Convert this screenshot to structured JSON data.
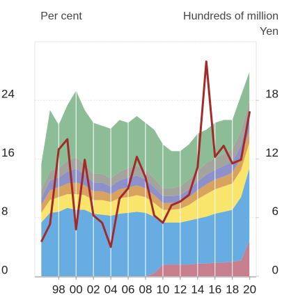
{
  "chart_data": {
    "type": "stacked_area_line",
    "ylabel": "Per cent",
    "y2label": [
      "Hundreds of million",
      "Yen"
    ],
    "x": [
      1996,
      1997,
      1998,
      1999,
      2000,
      2001,
      2002,
      2003,
      2004,
      2005,
      2006,
      2007,
      2008,
      2009,
      2010,
      2011,
      2012,
      2013,
      2014,
      2015,
      2016,
      2017,
      2018,
      2019,
      2020
    ],
    "xlim": [
      1995.25,
      2020.75
    ],
    "xticks": [
      {
        "value": 1998,
        "label": "98"
      },
      {
        "value": 2000,
        "label": "00"
      },
      {
        "value": 2002,
        "label": "02"
      },
      {
        "value": 2004,
        "label": "04"
      },
      {
        "value": 2006,
        "label": "06"
      },
      {
        "value": 2008,
        "label": "08"
      },
      {
        "value": 2010,
        "label": "10"
      },
      {
        "value": 2012,
        "label": "12"
      },
      {
        "value": 2014,
        "label": "14"
      },
      {
        "value": 2016,
        "label": "16"
      },
      {
        "value": 2018,
        "label": "18"
      },
      {
        "value": 2020,
        "label": "20"
      }
    ],
    "ylim": [
      0,
      32
    ],
    "yticks": [
      0,
      8,
      16,
      24
    ],
    "y2lim": [
      0,
      24
    ],
    "y2ticks": [
      0,
      6,
      12,
      18
    ],
    "series": [
      {
        "color": "#c77f8d",
        "axis": "y2",
        "values": [
          0,
          0,
          0,
          0,
          0,
          0,
          0,
          0,
          0,
          0,
          0,
          0,
          0,
          0.3,
          1.2,
          1.2,
          1.2,
          1.2,
          1.3,
          1.3,
          1.4,
          1.4,
          1.5,
          1.6,
          3.7
        ]
      },
      {
        "color": "#67ade2",
        "axis": "y2",
        "values": [
          5.5,
          6.5,
          6.6,
          7,
          6.8,
          6.8,
          6.4,
          6.3,
          6.2,
          6.4,
          6.5,
          6.6,
          6.5,
          5.8,
          4.3,
          4.3,
          4.3,
          4.5,
          4.6,
          4.8,
          5,
          5.2,
          5.3,
          6.5,
          7.5
        ]
      },
      {
        "color": "#f9e46c",
        "axis": "y2",
        "values": [
          1.0,
          1.3,
          1.5,
          1.4,
          1.6,
          1.5,
          1.4,
          1.5,
          1.4,
          1.6,
          1.6,
          1.7,
          1.6,
          1.4,
          1.3,
          1.3,
          1.4,
          1.6,
          2.0,
          2.3,
          2.5,
          2.6,
          2.7,
          2.8,
          2.6
        ]
      },
      {
        "color": "#d7a35e",
        "axis": "y2",
        "values": [
          0.8,
          1.0,
          1.0,
          1.1,
          1.2,
          1.0,
          0.9,
          0.9,
          0.8,
          0.9,
          1.0,
          1.0,
          0.9,
          0.8,
          0.7,
          0.7,
          0.7,
          0.8,
          0.9,
          1.0,
          1.0,
          1.0,
          1.1,
          1.2,
          1.3
        ]
      },
      {
        "color": "#8d90c9",
        "axis": "y2",
        "values": [
          0.7,
          1.0,
          1.0,
          1.2,
          1.4,
          1.1,
          0.9,
          0.9,
          0.8,
          0.9,
          1.0,
          1.0,
          0.9,
          0.8,
          0.7,
          0.7,
          0.7,
          0.8,
          0.9,
          1.0,
          1.0,
          1.1,
          1.1,
          1.3,
          1.4
        ]
      },
      {
        "color": "#a3a59c",
        "axis": "y2",
        "values": [
          0.8,
          1.0,
          1.0,
          1.1,
          1.2,
          1.0,
          0.9,
          0.9,
          0.8,
          0.9,
          1.0,
          1.0,
          1.0,
          0.9,
          0.8,
          0.8,
          0.9,
          1.0,
          1.1,
          1.2,
          1.2,
          1.2,
          1.3,
          1.5,
          1.6
        ]
      },
      {
        "color": "#8cbd96",
        "axis": "y2",
        "values": [
          2.7,
          6.2,
          4.4,
          5.7,
          6.8,
          5.6,
          5.2,
          4.9,
          5.1,
          5.3,
          4.6,
          5.1,
          4.8,
          5.0,
          4.5,
          3.8,
          3.6,
          3.6,
          3.8,
          3.4,
          3.6,
          3.5,
          3.0,
          3.6,
          2.9
        ]
      },
      {
        "color": "#a32a2a",
        "type": "line",
        "values": [
          4.7,
          7.1,
          17.3,
          18.7,
          6.4,
          15.9,
          8.3,
          7.3,
          4.0,
          10.6,
          12.0,
          16.3,
          13.5,
          8.3,
          7.3,
          9.7,
          10.2,
          11.1,
          14.9,
          29.3,
          16.3,
          17.8,
          15.4,
          15.9,
          22.5
        ]
      }
    ]
  }
}
